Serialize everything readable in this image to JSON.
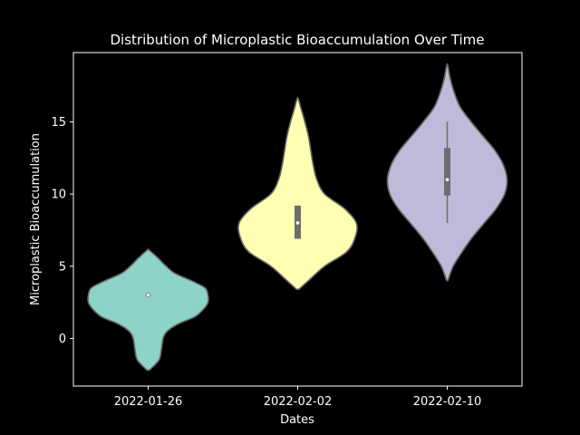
{
  "chart_data": {
    "type": "violin",
    "title": "Distribution of Microplastic Bioaccumulation Over Time",
    "xlabel": "Dates",
    "ylabel": "Microplastic Bioaccumulation",
    "categories": [
      "2022-01-26",
      "2022-02-02",
      "2022-02-10"
    ],
    "ylim": [
      -3.3,
      19.8
    ],
    "yticks": [
      0,
      5,
      10,
      15
    ],
    "grid": false,
    "violins": [
      {
        "category": "2022-01-26",
        "color": "#8dd3c7",
        "min": -2.2,
        "max": 6.1,
        "q1": 3.0,
        "median": 3.0,
        "q3": 3.0,
        "whisker_low": 3.0,
        "whisker_high": 3.0,
        "density": [
          [
            -2.2,
            0.02
          ],
          [
            -1.5,
            0.18
          ],
          [
            -0.8,
            0.22
          ],
          [
            0.0,
            0.25
          ],
          [
            0.5,
            0.32
          ],
          [
            1.0,
            0.5
          ],
          [
            1.5,
            0.78
          ],
          [
            2.0,
            0.92
          ],
          [
            2.5,
            1.0
          ],
          [
            3.0,
            1.0
          ],
          [
            3.5,
            0.95
          ],
          [
            4.0,
            0.72
          ],
          [
            4.5,
            0.45
          ],
          [
            5.0,
            0.3
          ],
          [
            5.5,
            0.18
          ],
          [
            6.1,
            0.02
          ]
        ]
      },
      {
        "category": "2022-02-02",
        "color": "#ffffb3",
        "min": 3.4,
        "max": 16.6,
        "q1": 6.9,
        "median": 8.0,
        "q3": 9.2,
        "whisker_low": 6.9,
        "whisker_high": 9.2,
        "density": [
          [
            3.4,
            0.02
          ],
          [
            4.0,
            0.18
          ],
          [
            5.0,
            0.45
          ],
          [
            6.0,
            0.82
          ],
          [
            7.0,
            0.96
          ],
          [
            8.0,
            0.98
          ],
          [
            9.0,
            0.78
          ],
          [
            10.0,
            0.45
          ],
          [
            11.0,
            0.32
          ],
          [
            12.0,
            0.26
          ],
          [
            13.0,
            0.22
          ],
          [
            14.0,
            0.18
          ],
          [
            15.0,
            0.12
          ],
          [
            16.0,
            0.05
          ],
          [
            16.6,
            0.01
          ]
        ]
      },
      {
        "category": "2022-02-10",
        "color": "#bebada",
        "min": 4.0,
        "max": 18.9,
        "q1": 9.9,
        "median": 11.0,
        "q3": 13.2,
        "whisker_low": 8.0,
        "whisker_high": 15.0,
        "density": [
          [
            4.0,
            0.01
          ],
          [
            5.0,
            0.1
          ],
          [
            6.0,
            0.25
          ],
          [
            7.0,
            0.42
          ],
          [
            8.0,
            0.62
          ],
          [
            9.0,
            0.82
          ],
          [
            10.0,
            0.96
          ],
          [
            11.0,
            1.0
          ],
          [
            12.0,
            0.94
          ],
          [
            13.0,
            0.8
          ],
          [
            14.0,
            0.6
          ],
          [
            15.0,
            0.4
          ],
          [
            16.0,
            0.22
          ],
          [
            17.0,
            0.12
          ],
          [
            18.0,
            0.05
          ],
          [
            18.9,
            0.01
          ]
        ]
      }
    ]
  }
}
